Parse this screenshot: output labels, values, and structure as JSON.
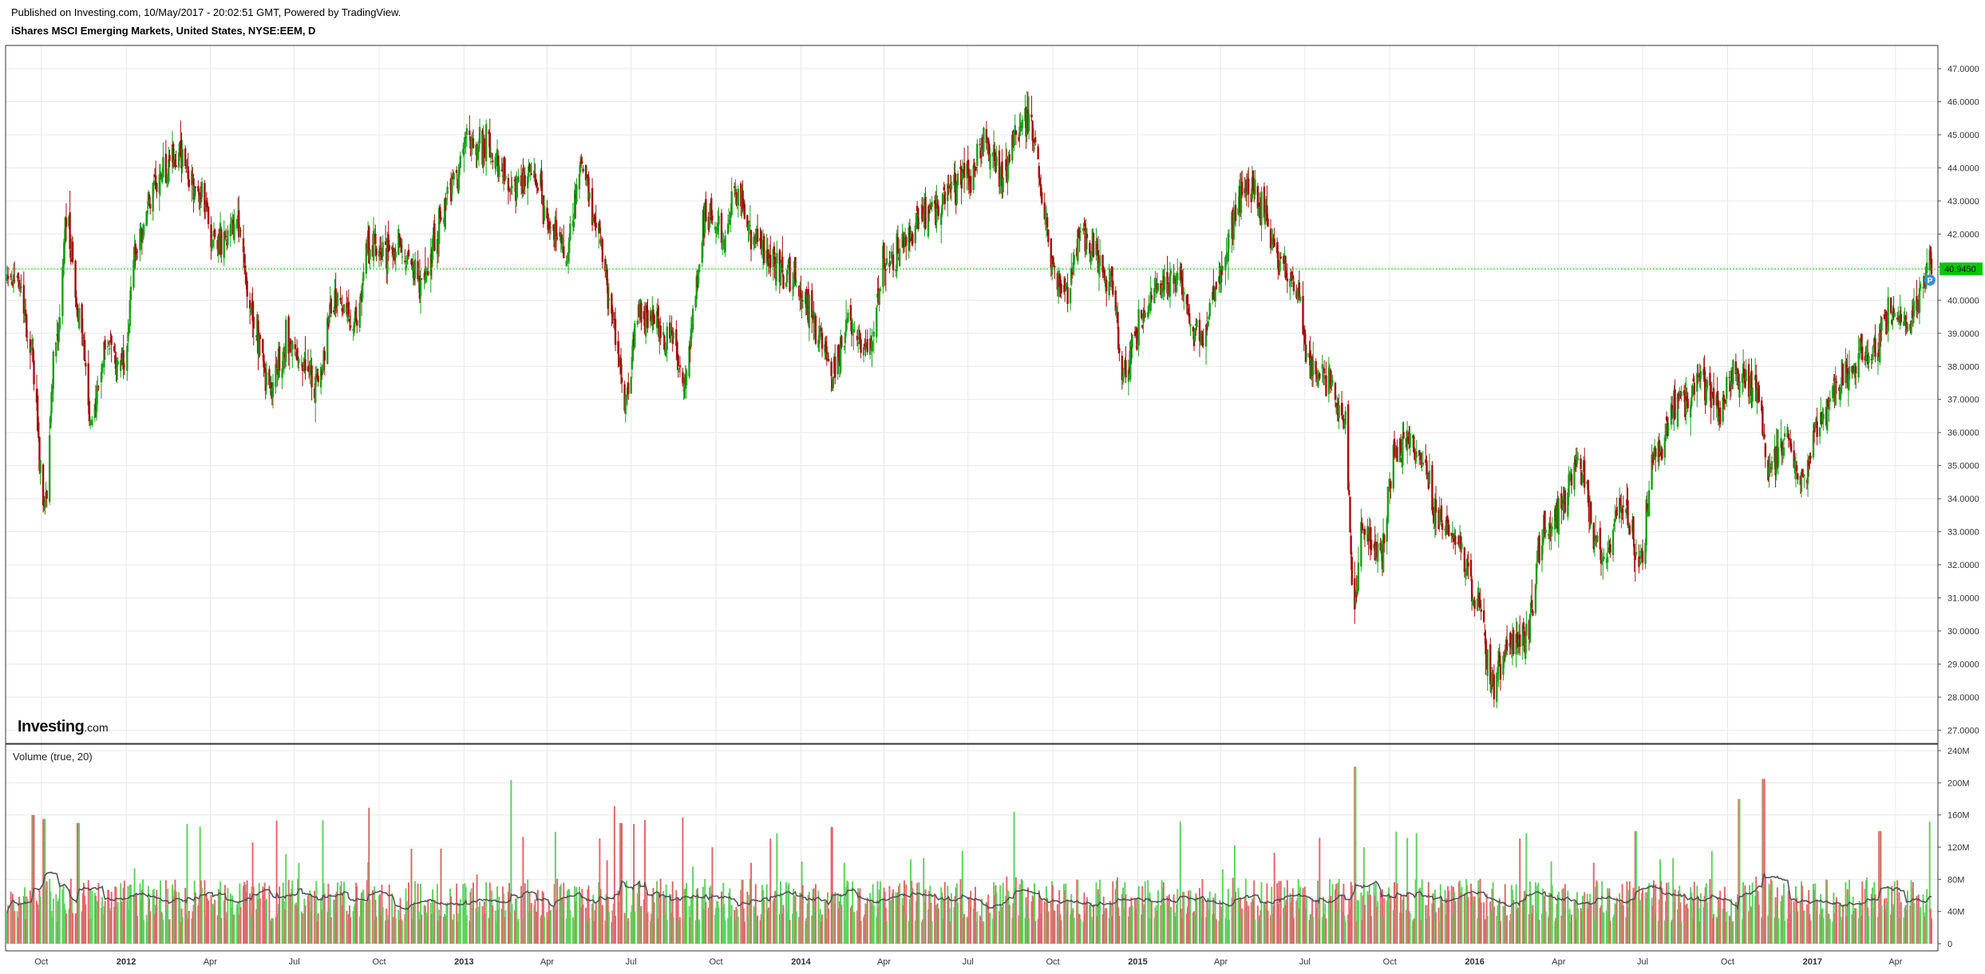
{
  "header": {
    "published": "Published on Investing.com, 10/May/2017 - 20:02:51 GMT, Powered by TradingView.",
    "title": "iShares MSCI Emerging Markets, United States, NYSE:EEM, D"
  },
  "logo": {
    "brand": "Investing",
    "domain": ".com"
  },
  "volume_panel": {
    "label": "Volume (true, 20)"
  },
  "price_badge": {
    "value": "40.9450",
    "flag_icon": "P"
  },
  "colors": {
    "up": "#1a9e1a",
    "down": "#a30c0c",
    "vol_up": "#5fd25f",
    "vol_down": "#e0686d",
    "ma_line": "#555555",
    "price_line": "#00c800",
    "badge": "#00c800",
    "grid": "#e8e8e8",
    "flag": "#3a8fd8"
  },
  "chart_data": [
    {
      "type": "candlestick",
      "title": "iShares MSCI Emerging Markets, United States, NYSE:EEM, D",
      "x_axis_ticks": [
        "Oct",
        "2012",
        "Apr",
        "Jul",
        "Oct",
        "2013",
        "Apr",
        "Jul",
        "Oct",
        "2014",
        "Apr",
        "Jul",
        "Oct",
        "2015",
        "Apr",
        "Jul",
        "Oct",
        "2016",
        "Apr",
        "Jul",
        "Oct",
        "2017",
        "Apr"
      ],
      "y_axis_ticks": [
        "47.0000",
        "46.0000",
        "45.0000",
        "44.0000",
        "43.0000",
        "42.0000",
        "41.0000",
        "40.0000",
        "39.0000",
        "38.0000",
        "37.0000",
        "36.0000",
        "35.0000",
        "34.0000",
        "33.0000",
        "32.0000",
        "31.0000",
        "30.0000",
        "29.0000",
        "28.0000",
        "27.0000"
      ],
      "ylim": [
        26.6,
        47.7
      ],
      "last_price": 40.945,
      "grid": true,
      "series_close_anchors": [
        {
          "date": "2011-09-06",
          "close": 40.5
        },
        {
          "date": "2011-09-20",
          "close": 38.4
        },
        {
          "date": "2011-10-04",
          "close": 34.0
        },
        {
          "date": "2011-10-18",
          "close": 39.0
        },
        {
          "date": "2011-10-28",
          "close": 42.3
        },
        {
          "date": "2011-11-10",
          "close": 39.5
        },
        {
          "date": "2011-11-25",
          "close": 36.5
        },
        {
          "date": "2011-12-12",
          "close": 38.8
        },
        {
          "date": "2011-12-28",
          "close": 38.0
        },
        {
          "date": "2012-01-12",
          "close": 41.5
        },
        {
          "date": "2012-02-01",
          "close": 43.5
        },
        {
          "date": "2012-02-28",
          "close": 44.3
        },
        {
          "date": "2012-03-20",
          "close": 43.0
        },
        {
          "date": "2012-04-10",
          "close": 41.8
        },
        {
          "date": "2012-05-01",
          "close": 42.3
        },
        {
          "date": "2012-05-20",
          "close": 39.0
        },
        {
          "date": "2012-06-04",
          "close": 37.4
        },
        {
          "date": "2012-06-20",
          "close": 38.6
        },
        {
          "date": "2012-07-10",
          "close": 38.2
        },
        {
          "date": "2012-07-25",
          "close": 37.6
        },
        {
          "date": "2012-08-15",
          "close": 40.0
        },
        {
          "date": "2012-09-05",
          "close": 39.2
        },
        {
          "date": "2012-09-20",
          "close": 41.8
        },
        {
          "date": "2012-10-10",
          "close": 41.5
        },
        {
          "date": "2012-10-25",
          "close": 41.7
        },
        {
          "date": "2012-11-16",
          "close": 40.4
        },
        {
          "date": "2012-12-05",
          "close": 42.5
        },
        {
          "date": "2012-12-26",
          "close": 44.0
        },
        {
          "date": "2013-01-03",
          "close": 45.0
        },
        {
          "date": "2013-01-25",
          "close": 44.5
        },
        {
          "date": "2013-02-25",
          "close": 43.5
        },
        {
          "date": "2013-03-15",
          "close": 43.8
        },
        {
          "date": "2013-04-08",
          "close": 42.0
        },
        {
          "date": "2013-04-22",
          "close": 41.6
        },
        {
          "date": "2013-05-08",
          "close": 43.8
        },
        {
          "date": "2013-05-28",
          "close": 42.0
        },
        {
          "date": "2013-06-10",
          "close": 39.5
        },
        {
          "date": "2013-06-24",
          "close": 37.0
        },
        {
          "date": "2013-07-10",
          "close": 39.5
        },
        {
          "date": "2013-07-25",
          "close": 39.4
        },
        {
          "date": "2013-08-15",
          "close": 38.8
        },
        {
          "date": "2013-08-28",
          "close": 37.5
        },
        {
          "date": "2013-09-10",
          "close": 40.5
        },
        {
          "date": "2013-09-20",
          "close": 42.7
        },
        {
          "date": "2013-10-10",
          "close": 41.8
        },
        {
          "date": "2013-10-22",
          "close": 43.3
        },
        {
          "date": "2013-11-10",
          "close": 42.0
        },
        {
          "date": "2013-11-28",
          "close": 41.2
        },
        {
          "date": "2013-12-15",
          "close": 40.8
        },
        {
          "date": "2014-01-03",
          "close": 40.2
        },
        {
          "date": "2014-01-22",
          "close": 39.0
        },
        {
          "date": "2014-02-04",
          "close": 37.6
        },
        {
          "date": "2014-02-20",
          "close": 39.3
        },
        {
          "date": "2014-03-14",
          "close": 38.5
        },
        {
          "date": "2014-04-02",
          "close": 41.2
        },
        {
          "date": "2014-04-20",
          "close": 41.6
        },
        {
          "date": "2014-05-15",
          "close": 42.6
        },
        {
          "date": "2014-06-10",
          "close": 43.3
        },
        {
          "date": "2014-07-01",
          "close": 43.8
        },
        {
          "date": "2014-07-20",
          "close": 44.8
        },
        {
          "date": "2014-08-08",
          "close": 43.6
        },
        {
          "date": "2014-08-25",
          "close": 45.3
        },
        {
          "date": "2014-09-05",
          "close": 45.6
        },
        {
          "date": "2014-09-22",
          "close": 42.5
        },
        {
          "date": "2014-10-01",
          "close": 41.0
        },
        {
          "date": "2014-10-15",
          "close": 40.2
        },
        {
          "date": "2014-10-31",
          "close": 42.0
        },
        {
          "date": "2014-11-20",
          "close": 41.3
        },
        {
          "date": "2014-12-05",
          "close": 40.3
        },
        {
          "date": "2014-12-16",
          "close": 37.8
        },
        {
          "date": "2015-01-08",
          "close": 39.6
        },
        {
          "date": "2015-01-25",
          "close": 40.6
        },
        {
          "date": "2015-02-15",
          "close": 40.4
        },
        {
          "date": "2015-03-10",
          "close": 38.7
        },
        {
          "date": "2015-03-28",
          "close": 40.3
        },
        {
          "date": "2015-04-15",
          "close": 42.5
        },
        {
          "date": "2015-04-28",
          "close": 43.6
        },
        {
          "date": "2015-05-15",
          "close": 42.8
        },
        {
          "date": "2015-06-01",
          "close": 41.3
        },
        {
          "date": "2015-06-20",
          "close": 40.4
        },
        {
          "date": "2015-07-08",
          "close": 38.0
        },
        {
          "date": "2015-07-28",
          "close": 37.6
        },
        {
          "date": "2015-08-12",
          "close": 36.2
        },
        {
          "date": "2015-08-24",
          "close": 31.0
        },
        {
          "date": "2015-09-02",
          "close": 33.2
        },
        {
          "date": "2015-09-22",
          "close": 32.4
        },
        {
          "date": "2015-10-06",
          "close": 35.2
        },
        {
          "date": "2015-10-22",
          "close": 35.9
        },
        {
          "date": "2015-11-05",
          "close": 35.0
        },
        {
          "date": "2015-11-25",
          "close": 33.5
        },
        {
          "date": "2015-12-14",
          "close": 32.5
        },
        {
          "date": "2016-01-05",
          "close": 31.0
        },
        {
          "date": "2016-01-20",
          "close": 28.3
        },
        {
          "date": "2016-02-05",
          "close": 29.5
        },
        {
          "date": "2016-02-25",
          "close": 29.8
        },
        {
          "date": "2016-03-15",
          "close": 32.8
        },
        {
          "date": "2016-04-01",
          "close": 33.7
        },
        {
          "date": "2016-04-20",
          "close": 35.0
        },
        {
          "date": "2016-05-20",
          "close": 32.2
        },
        {
          "date": "2016-06-10",
          "close": 34.0
        },
        {
          "date": "2016-06-27",
          "close": 32.2
        },
        {
          "date": "2016-07-15",
          "close": 35.3
        },
        {
          "date": "2016-08-10",
          "close": 37.0
        },
        {
          "date": "2016-09-01",
          "close": 37.6
        },
        {
          "date": "2016-09-20",
          "close": 36.8
        },
        {
          "date": "2016-10-10",
          "close": 37.8
        },
        {
          "date": "2016-11-01",
          "close": 37.2
        },
        {
          "date": "2016-11-15",
          "close": 35.0
        },
        {
          "date": "2016-11-30",
          "close": 35.7
        },
        {
          "date": "2016-12-20",
          "close": 34.6
        },
        {
          "date": "2017-01-10",
          "close": 36.4
        },
        {
          "date": "2017-01-30",
          "close": 37.5
        },
        {
          "date": "2017-02-20",
          "close": 38.3
        },
        {
          "date": "2017-03-10",
          "close": 38.5
        },
        {
          "date": "2017-03-25",
          "close": 39.7
        },
        {
          "date": "2017-04-12",
          "close": 39.3
        },
        {
          "date": "2017-04-25",
          "close": 40.0
        },
        {
          "date": "2017-05-10",
          "close": 40.95
        }
      ]
    },
    {
      "type": "bar",
      "title": "Volume (true, 20)",
      "y_axis_ticks": [
        "240M",
        "200M",
        "160M",
        "120M",
        "80M",
        "40M",
        "0"
      ],
      "ylim": [
        0,
        240
      ],
      "moving_average_period": 20,
      "typical_volume_millions": 60,
      "spikes_millions": [
        {
          "date": "2011-09-22",
          "value": 160
        },
        {
          "date": "2011-10-04",
          "value": 155
        },
        {
          "date": "2011-11-10",
          "value": 150
        },
        {
          "date": "2013-06-20",
          "value": 150
        },
        {
          "date": "2014-02-03",
          "value": 145
        },
        {
          "date": "2015-08-24",
          "value": 220
        },
        {
          "date": "2016-06-24",
          "value": 140
        },
        {
          "date": "2016-10-14",
          "value": 180
        },
        {
          "date": "2016-11-09",
          "value": 205
        },
        {
          "date": "2017-03-15",
          "value": 140
        }
      ]
    }
  ]
}
